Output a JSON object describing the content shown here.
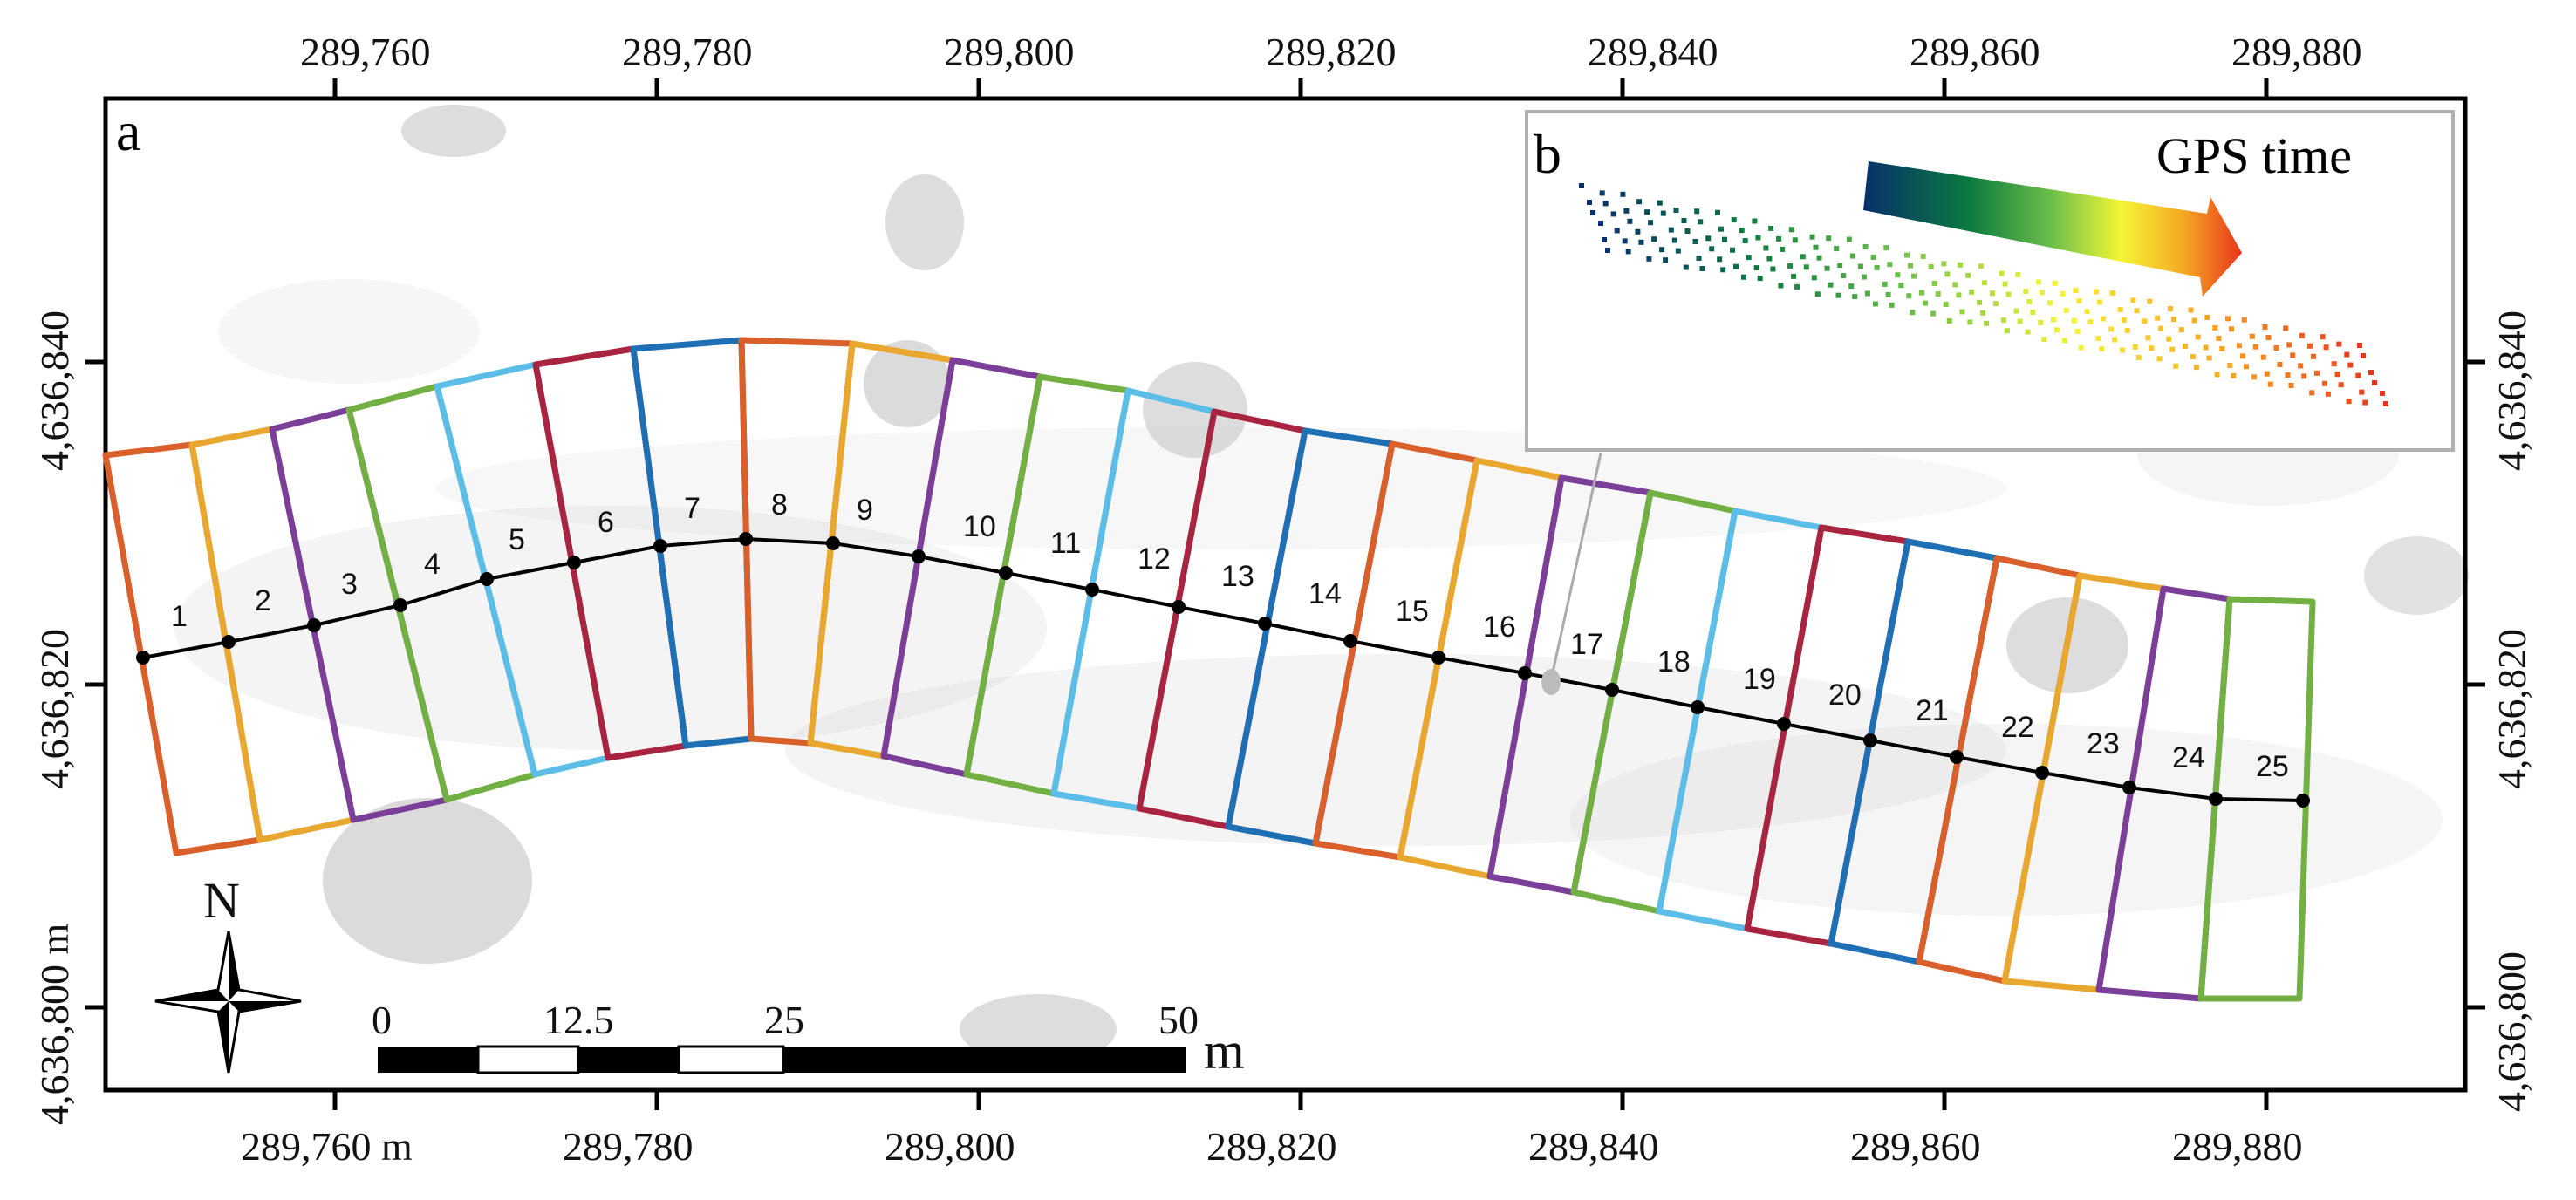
{
  "figure": {
    "panel_a_label": "a",
    "panel_b_label": "b",
    "inset_title": "GPS time",
    "north_label": "N"
  },
  "axes": {
    "top_ticks": [
      "289,760",
      "289,780",
      "289,800",
      "289,820",
      "289,840",
      "289,860",
      "289,880"
    ],
    "bottom_ticks": [
      "289,760 m",
      "289,780",
      "289,800",
      "289,820",
      "289,840",
      "289,860",
      "289,880"
    ],
    "left_ticks": [
      "4,636,840",
      "4,636,820",
      "4,636,800 m"
    ],
    "right_ticks": [
      "4,636,840",
      "4,636,820",
      "4,636,800"
    ]
  },
  "scale_bar": {
    "labels": [
      "0",
      "12.5",
      "25",
      "50"
    ],
    "unit": "m"
  },
  "segments": {
    "labels": [
      "1",
      "2",
      "3",
      "4",
      "5",
      "6",
      "7",
      "8",
      "9",
      "10",
      "11",
      "12",
      "13",
      "14",
      "15",
      "16",
      "17",
      "18",
      "19",
      "20",
      "21",
      "22",
      "23",
      "24",
      "25"
    ],
    "colors": [
      "#d95f2b",
      "#e8a830",
      "#7b3f99",
      "#72b043",
      "#5bbde8",
      "#a8243f",
      "#1f6fb5"
    ]
  },
  "gps_gradient": [
    "#08306b",
    "#0b7a3e",
    "#6cc04a",
    "#f5f536",
    "#f5a623",
    "#e8341c"
  ]
}
